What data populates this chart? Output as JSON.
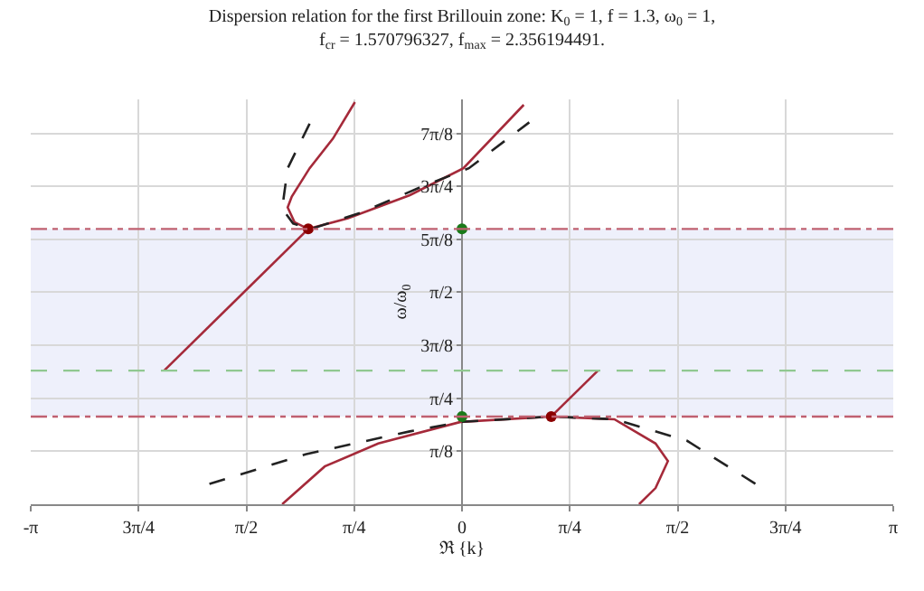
{
  "chart_data": {
    "type": "line",
    "title": "Dispersion relation for the first Brillouin zone: K$_{0}$ = 1, f = 1.3, ω$_{0}$ = 1,\nf$_{cr}$ = 1.570796327, f$_{max}$ = 2.356194491.",
    "xlabel": "ℜ {k}",
    "ylabel": "ω/ω$_{0}$",
    "xlim": [
      -3.1416,
      3.1416
    ],
    "ylim": [
      0,
      3.0
    ],
    "xticks": [
      {
        "value": -3.1416,
        "label": "-π"
      },
      {
        "value": -2.3562,
        "label": "3π/4"
      },
      {
        "value": -1.5708,
        "label": "π/2"
      },
      {
        "value": -0.7854,
        "label": "π/4"
      },
      0,
      {
        "value": 0.7854,
        "label": "π/4"
      },
      {
        "value": 1.5708,
        "label": "π/2"
      },
      {
        "value": 2.3562,
        "label": "3π/4"
      },
      {
        "value": 3.1416,
        "label": "π"
      }
    ],
    "yticks": [
      {
        "value": 0.3927,
        "label": "π/8"
      },
      {
        "value": 0.7854,
        "label": "π/4"
      },
      {
        "value": 1.1781,
        "label": "3π/8"
      },
      {
        "value": 1.5708,
        "label": "π/2"
      },
      {
        "value": 1.9635,
        "label": "5π/8"
      },
      {
        "value": 2.3562,
        "label": "3π/4"
      },
      {
        "value": 2.7489,
        "label": "7π/8"
      }
    ],
    "grid": true,
    "series": [
      {
        "color": "#a52a3a",
        "x": [
          -2.17,
          -1.12
        ],
        "values": [
          0.99,
          2.04
        ]
      },
      {
        "color": "#a52a3a",
        "x": [
          -0.78,
          -0.94,
          -1.11,
          -1.24,
          -1.27,
          -1.22,
          -1.12,
          -0.83,
          -0.38,
          0.01,
          0.45
        ],
        "values": [
          2.98,
          2.71,
          2.49,
          2.28,
          2.2,
          2.09,
          2.04,
          2.12,
          2.29,
          2.49,
          2.96
        ]
      },
      {
        "color": "#222222",
        "line_style": "dashed",
        "x": [
          -1.11,
          -1.27,
          -1.31,
          -1.23,
          -1.1,
          -0.74,
          -0.3,
          0.05,
          0.49
        ],
        "values": [
          2.82,
          2.49,
          2.19,
          2.08,
          2.04,
          2.16,
          2.35,
          2.49,
          2.83
        ]
      },
      {
        "color": "#a52a3a",
        "x": [
          -1.31,
          -1.0,
          -0.61,
          -0.01,
          0.65,
          1.11,
          1.41,
          1.5,
          1.41,
          1.29
        ],
        "values": [
          0,
          0.28,
          0.45,
          0.61,
          0.65,
          0.63,
          0.45,
          0.32,
          0.12,
          0
        ]
      },
      {
        "color": "#a52a3a",
        "x": [
          0.65,
          0.99
        ],
        "values": [
          0.65,
          0.99
        ]
      },
      {
        "color": "#222222",
        "line_style": "dashed",
        "x": [
          -1.84,
          -1.14,
          -0.38,
          -0.01,
          0.65,
          1.11,
          1.64,
          2.14
        ],
        "values": [
          0.15,
          0.37,
          0.54,
          0.61,
          0.65,
          0.63,
          0.47,
          0.15
        ]
      },
      {
        "type": "scatter",
        "color": "#8b0000",
        "marker": "circle",
        "x": [
          -1.12,
          0.65
        ],
        "values": [
          2.04,
          0.65
        ]
      },
      {
        "type": "scatter",
        "color": "#1a7a1a",
        "marker": "circle",
        "x": [
          0,
          0
        ],
        "values": [
          2.04,
          0.65
        ]
      }
    ],
    "ref_lines": [
      {
        "axis": "y",
        "value": 2.04,
        "color": "#c06070",
        "line_style": "dashdot"
      },
      {
        "axis": "y",
        "value": 0.65,
        "color": "#c06070",
        "line_style": "dashdot"
      },
      {
        "axis": "y",
        "value": 0.99,
        "color": "#90c890",
        "line_style": "dashed"
      }
    ],
    "bands": [
      {
        "axis": "y",
        "from": 0.65,
        "to": 2.04,
        "color": "#eef0fb"
      }
    ]
  }
}
